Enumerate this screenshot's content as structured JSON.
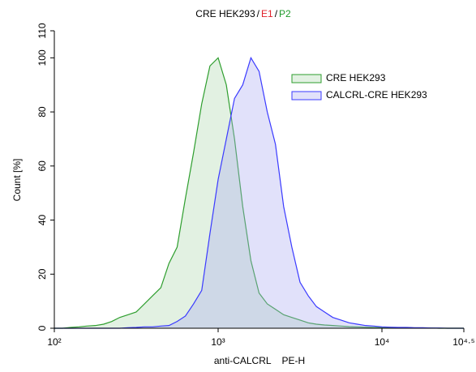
{
  "chart_data": {
    "type": "area",
    "title": [
      "CRE HEK293",
      "E1",
      "P2"
    ],
    "title_colors": [
      "#000000",
      "#e0202a",
      "#1f9a2a"
    ],
    "title_separator": "/",
    "xlabel": "anti-CALCRL    PE-H",
    "ylabel": "Count [%]",
    "xscale": "log",
    "xlim": [
      100,
      31623
    ],
    "xticks": [
      {
        "value": 100,
        "label": "10²"
      },
      {
        "value": 1000,
        "label": "10³"
      },
      {
        "value": 10000,
        "label": "10⁴"
      },
      {
        "value": 31623,
        "label": "10⁴·⁵"
      }
    ],
    "ylim": [
      0,
      110
    ],
    "yticks": [
      0,
      20,
      40,
      60,
      80,
      100,
      110
    ],
    "legend": "top-right",
    "x": [
      100,
      112,
      126,
      141,
      158,
      178,
      200,
      224,
      251,
      282,
      316,
      355,
      398,
      447,
      501,
      562,
      631,
      708,
      794,
      891,
      1000,
      1122,
      1259,
      1413,
      1585,
      1778,
      1995,
      2239,
      2512,
      2818,
      3162,
      3548,
      3981,
      4467,
      5012,
      5623,
      6310,
      7079,
      7943,
      8913,
      10000,
      11220,
      12589,
      14125,
      15849,
      17783,
      19953,
      22387,
      25119,
      28184,
      31623
    ],
    "series": [
      {
        "name": "CRE HEK293",
        "color": "#2e9e2e",
        "fill": "rgba(150,205,150,0.28)",
        "values": [
          0,
          0,
          0.3,
          0.5,
          0.8,
          1,
          1.5,
          2.5,
          4,
          5,
          6,
          9,
          12,
          15,
          24,
          30,
          48,
          65,
          83,
          97,
          100,
          90,
          70,
          45,
          25,
          13,
          9,
          7,
          5,
          4,
          3,
          2,
          1.5,
          1.2,
          1,
          0.8,
          0.6,
          0.5,
          0.4,
          0.3,
          0.3,
          0.2,
          0.2,
          0.2,
          0.1,
          0.1,
          0.1,
          0,
          0,
          0,
          0
        ]
      },
      {
        "name": "CALCRL-CRE HEK293",
        "color": "#3a3aff",
        "fill": "rgba(170,170,240,0.35)",
        "values": [
          0,
          0,
          0,
          0,
          0,
          0,
          0,
          0,
          0,
          0.2,
          0.3,
          0.5,
          0.5,
          0.8,
          1,
          2.5,
          4.5,
          9,
          14,
          35,
          55,
          70,
          85,
          90,
          100,
          95,
          80,
          68,
          45,
          30,
          17,
          12,
          8,
          6,
          4,
          3,
          2,
          1.5,
          1,
          0.8,
          0.5,
          0.4,
          0.3,
          0.3,
          0.2,
          0.2,
          0.1,
          0.1,
          0,
          0,
          0
        ]
      }
    ]
  }
}
